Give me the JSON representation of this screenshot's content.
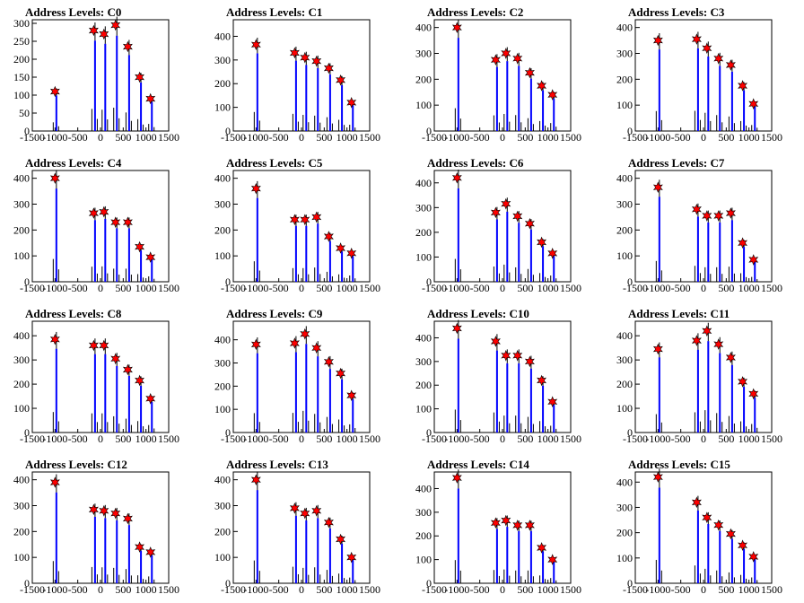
{
  "figure": {
    "background": "#ffffff"
  },
  "chart_data": [
    {
      "type": "histogram",
      "title": "Address Levels: C0",
      "xlim": [
        -1500,
        1500
      ],
      "ylim": [
        0,
        310
      ],
      "yticks": [
        0,
        50,
        100,
        150,
        200,
        250,
        300
      ],
      "xticks": [
        -1500,
        -1000,
        -500,
        0,
        500,
        1000,
        1500
      ],
      "peaks": [
        {
          "x": -1000,
          "y": 110
        },
        {
          "x": -150,
          "y": 280
        },
        {
          "x": 75,
          "y": 270
        },
        {
          "x": 330,
          "y": 295
        },
        {
          "x": 600,
          "y": 235
        },
        {
          "x": 860,
          "y": 150
        },
        {
          "x": 1100,
          "y": 90
        }
      ],
      "colors": {
        "hist": "#0000ff",
        "marker": "#ff0000"
      }
    },
    {
      "type": "histogram",
      "title": "Address Levels: C1",
      "xlim": [
        -1500,
        1500
      ],
      "ylim": [
        0,
        470
      ],
      "yticks": [
        0,
        100,
        200,
        300,
        400
      ],
      "xticks": [
        -1500,
        -1000,
        -500,
        0,
        500,
        1000,
        1500
      ],
      "peaks": [
        {
          "x": -1000,
          "y": 365
        },
        {
          "x": -150,
          "y": 330
        },
        {
          "x": 75,
          "y": 310
        },
        {
          "x": 330,
          "y": 295
        },
        {
          "x": 600,
          "y": 265
        },
        {
          "x": 860,
          "y": 215
        },
        {
          "x": 1100,
          "y": 120
        }
      ],
      "colors": {
        "hist": "#0000ff",
        "marker": "#ff0000"
      }
    },
    {
      "type": "histogram",
      "title": "Address Levels: C2",
      "xlim": [
        -1500,
        1500
      ],
      "ylim": [
        0,
        430
      ],
      "yticks": [
        0,
        100,
        200,
        300,
        400
      ],
      "xticks": [
        -1500,
        -1000,
        -500,
        0,
        500,
        1000,
        1500
      ],
      "peaks": [
        {
          "x": -1000,
          "y": 400
        },
        {
          "x": -150,
          "y": 275
        },
        {
          "x": 75,
          "y": 300
        },
        {
          "x": 330,
          "y": 280
        },
        {
          "x": 600,
          "y": 225
        },
        {
          "x": 860,
          "y": 175
        },
        {
          "x": 1100,
          "y": 140
        }
      ],
      "colors": {
        "hist": "#0000ff",
        "marker": "#ff0000"
      }
    },
    {
      "type": "histogram",
      "title": "Address Levels: C3",
      "xlim": [
        -1500,
        1500
      ],
      "ylim": [
        0,
        430
      ],
      "yticks": [
        0,
        100,
        200,
        300,
        400
      ],
      "xticks": [
        -1500,
        -1000,
        -500,
        0,
        500,
        1000,
        1500
      ],
      "peaks": [
        {
          "x": -1000,
          "y": 350
        },
        {
          "x": -150,
          "y": 355
        },
        {
          "x": 75,
          "y": 320
        },
        {
          "x": 330,
          "y": 280
        },
        {
          "x": 600,
          "y": 255
        },
        {
          "x": 860,
          "y": 175
        },
        {
          "x": 1100,
          "y": 105
        }
      ],
      "colors": {
        "hist": "#0000ff",
        "marker": "#ff0000"
      }
    },
    {
      "type": "histogram",
      "title": "Address Levels: C4",
      "xlim": [
        -1500,
        1500
      ],
      "ylim": [
        0,
        430
      ],
      "yticks": [
        0,
        100,
        200,
        300,
        400
      ],
      "xticks": [
        -1500,
        -1000,
        -500,
        0,
        500,
        1000,
        1500
      ],
      "peaks": [
        {
          "x": -1000,
          "y": 400
        },
        {
          "x": -150,
          "y": 265
        },
        {
          "x": 75,
          "y": 270
        },
        {
          "x": 330,
          "y": 230
        },
        {
          "x": 600,
          "y": 230
        },
        {
          "x": 860,
          "y": 135
        },
        {
          "x": 1100,
          "y": 95
        }
      ],
      "colors": {
        "hist": "#0000ff",
        "marker": "#ff0000"
      }
    },
    {
      "type": "histogram",
      "title": "Address Levels: C5",
      "xlim": [
        -1500,
        1500
      ],
      "ylim": [
        0,
        430
      ],
      "yticks": [
        0,
        100,
        200,
        300,
        400
      ],
      "xticks": [
        -1500,
        -1000,
        -500,
        0,
        500,
        1000,
        1500
      ],
      "peaks": [
        {
          "x": -1000,
          "y": 360
        },
        {
          "x": -150,
          "y": 240
        },
        {
          "x": 75,
          "y": 240
        },
        {
          "x": 330,
          "y": 250
        },
        {
          "x": 600,
          "y": 175
        },
        {
          "x": 860,
          "y": 130
        },
        {
          "x": 1100,
          "y": 110
        }
      ],
      "colors": {
        "hist": "#0000ff",
        "marker": "#ff0000"
      }
    },
    {
      "type": "histogram",
      "title": "Address Levels: C6",
      "xlim": [
        -1500,
        1500
      ],
      "ylim": [
        0,
        450
      ],
      "yticks": [
        0,
        100,
        200,
        300,
        400
      ],
      "xticks": [
        -1500,
        -1000,
        -500,
        0,
        500,
        1000,
        1500
      ],
      "peaks": [
        {
          "x": -1000,
          "y": 420
        },
        {
          "x": -150,
          "y": 280
        },
        {
          "x": 75,
          "y": 315
        },
        {
          "x": 330,
          "y": 265
        },
        {
          "x": 600,
          "y": 235
        },
        {
          "x": 860,
          "y": 160
        },
        {
          "x": 1100,
          "y": 115
        }
      ],
      "colors": {
        "hist": "#0000ff",
        "marker": "#ff0000"
      }
    },
    {
      "type": "histogram",
      "title": "Address Levels: C7",
      "xlim": [
        -1500,
        1500
      ],
      "ylim": [
        0,
        430
      ],
      "yticks": [
        0,
        100,
        200,
        300,
        400
      ],
      "xticks": [
        -1500,
        -1000,
        -500,
        0,
        500,
        1000,
        1500
      ],
      "peaks": [
        {
          "x": -1000,
          "y": 365
        },
        {
          "x": -150,
          "y": 280
        },
        {
          "x": 75,
          "y": 255
        },
        {
          "x": 330,
          "y": 255
        },
        {
          "x": 600,
          "y": 265
        },
        {
          "x": 860,
          "y": 150
        },
        {
          "x": 1100,
          "y": 85
        }
      ],
      "colors": {
        "hist": "#0000ff",
        "marker": "#ff0000"
      }
    },
    {
      "type": "histogram",
      "title": "Address Levels: C8",
      "xlim": [
        -1500,
        1500
      ],
      "ylim": [
        0,
        460
      ],
      "yticks": [
        0,
        100,
        200,
        300,
        400
      ],
      "xticks": [
        -1500,
        -1000,
        -500,
        0,
        500,
        1000,
        1500
      ],
      "peaks": [
        {
          "x": -1000,
          "y": 385
        },
        {
          "x": -150,
          "y": 360
        },
        {
          "x": 75,
          "y": 360
        },
        {
          "x": 330,
          "y": 305
        },
        {
          "x": 600,
          "y": 260
        },
        {
          "x": 860,
          "y": 215
        },
        {
          "x": 1100,
          "y": 140
        }
      ],
      "colors": {
        "hist": "#0000ff",
        "marker": "#ff0000"
      }
    },
    {
      "type": "histogram",
      "title": "Address Levels: C9",
      "xlim": [
        -1500,
        1500
      ],
      "ylim": [
        0,
        480
      ],
      "yticks": [
        0,
        100,
        200,
        300,
        400
      ],
      "xticks": [
        -1500,
        -1000,
        -500,
        0,
        500,
        1000,
        1500
      ],
      "peaks": [
        {
          "x": -1000,
          "y": 380
        },
        {
          "x": -150,
          "y": 385
        },
        {
          "x": 75,
          "y": 425
        },
        {
          "x": 330,
          "y": 365
        },
        {
          "x": 600,
          "y": 305
        },
        {
          "x": 860,
          "y": 255
        },
        {
          "x": 1100,
          "y": 160
        }
      ],
      "colors": {
        "hist": "#0000ff",
        "marker": "#ff0000"
      }
    },
    {
      "type": "histogram",
      "title": "Address Levels: C10",
      "xlim": [
        -1500,
        1500
      ],
      "ylim": [
        0,
        470
      ],
      "yticks": [
        0,
        100,
        200,
        300,
        400
      ],
      "xticks": [
        -1500,
        -1000,
        -500,
        0,
        500,
        1000,
        1500
      ],
      "peaks": [
        {
          "x": -1000,
          "y": 440
        },
        {
          "x": -150,
          "y": 385
        },
        {
          "x": 75,
          "y": 325
        },
        {
          "x": 330,
          "y": 325
        },
        {
          "x": 600,
          "y": 300
        },
        {
          "x": 860,
          "y": 220
        },
        {
          "x": 1100,
          "y": 130
        }
      ],
      "colors": {
        "hist": "#0000ff",
        "marker": "#ff0000"
      }
    },
    {
      "type": "histogram",
      "title": "Address Levels: C11",
      "xlim": [
        -1500,
        1500
      ],
      "ylim": [
        0,
        460
      ],
      "yticks": [
        0,
        100,
        200,
        300,
        400
      ],
      "xticks": [
        -1500,
        -1000,
        -500,
        0,
        500,
        1000,
        1500
      ],
      "peaks": [
        {
          "x": -1000,
          "y": 345
        },
        {
          "x": -150,
          "y": 380
        },
        {
          "x": 75,
          "y": 420
        },
        {
          "x": 330,
          "y": 365
        },
        {
          "x": 600,
          "y": 310
        },
        {
          "x": 860,
          "y": 210
        },
        {
          "x": 1100,
          "y": 160
        }
      ],
      "colors": {
        "hist": "#0000ff",
        "marker": "#ff0000"
      }
    },
    {
      "type": "histogram",
      "title": "Address Levels: C12",
      "xlim": [
        -1500,
        1500
      ],
      "ylim": [
        0,
        430
      ],
      "yticks": [
        0,
        100,
        200,
        300,
        400
      ],
      "xticks": [
        -1500,
        -1000,
        -500,
        0,
        500,
        1000,
        1500
      ],
      "peaks": [
        {
          "x": -1000,
          "y": 390
        },
        {
          "x": -150,
          "y": 285
        },
        {
          "x": 75,
          "y": 280
        },
        {
          "x": 330,
          "y": 270
        },
        {
          "x": 600,
          "y": 250
        },
        {
          "x": 860,
          "y": 140
        },
        {
          "x": 1100,
          "y": 120
        }
      ],
      "colors": {
        "hist": "#0000ff",
        "marker": "#ff0000"
      }
    },
    {
      "type": "histogram",
      "title": "Address Levels: C13",
      "xlim": [
        -1500,
        1500
      ],
      "ylim": [
        0,
        430
      ],
      "yticks": [
        0,
        100,
        200,
        300,
        400
      ],
      "xticks": [
        -1500,
        -1000,
        -500,
        0,
        500,
        1000,
        1500
      ],
      "peaks": [
        {
          "x": -1000,
          "y": 400
        },
        {
          "x": -150,
          "y": 290
        },
        {
          "x": 75,
          "y": 270
        },
        {
          "x": 330,
          "y": 280
        },
        {
          "x": 600,
          "y": 235
        },
        {
          "x": 860,
          "y": 170
        },
        {
          "x": 1100,
          "y": 100
        }
      ],
      "colors": {
        "hist": "#0000ff",
        "marker": "#ff0000"
      }
    },
    {
      "type": "histogram",
      "title": "Address Levels: C14",
      "xlim": [
        -1500,
        1500
      ],
      "ylim": [
        0,
        470
      ],
      "yticks": [
        0,
        100,
        200,
        300,
        400
      ],
      "xticks": [
        -1500,
        -1000,
        -500,
        0,
        500,
        1000,
        1500
      ],
      "peaks": [
        {
          "x": -1000,
          "y": 445
        },
        {
          "x": -150,
          "y": 255
        },
        {
          "x": 75,
          "y": 265
        },
        {
          "x": 330,
          "y": 245
        },
        {
          "x": 600,
          "y": 245
        },
        {
          "x": 860,
          "y": 150
        },
        {
          "x": 1100,
          "y": 100
        }
      ],
      "colors": {
        "hist": "#0000ff",
        "marker": "#ff0000"
      }
    },
    {
      "type": "histogram",
      "title": "Address Levels: C15",
      "xlim": [
        -1500,
        1500
      ],
      "ylim": [
        0,
        440
      ],
      "yticks": [
        0,
        100,
        200,
        300,
        400
      ],
      "xticks": [
        -1500,
        -1000,
        -500,
        0,
        500,
        1000,
        1500
      ],
      "peaks": [
        {
          "x": -1000,
          "y": 420
        },
        {
          "x": -150,
          "y": 320
        },
        {
          "x": 75,
          "y": 260
        },
        {
          "x": 330,
          "y": 230
        },
        {
          "x": 600,
          "y": 195
        },
        {
          "x": 860,
          "y": 150
        },
        {
          "x": 1100,
          "y": 105
        }
      ],
      "colors": {
        "hist": "#0000ff",
        "marker": "#ff0000"
      }
    }
  ]
}
